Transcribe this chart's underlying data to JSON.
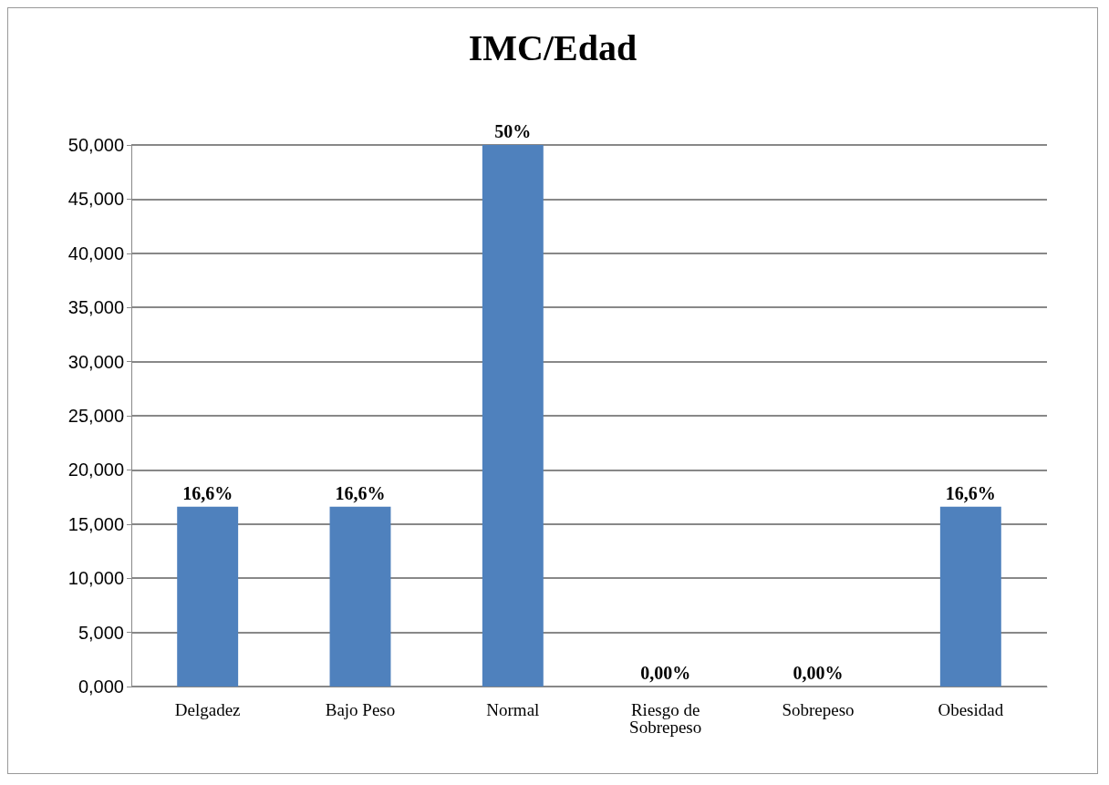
{
  "chart_data": {
    "type": "bar",
    "title": "IMC/Edad",
    "categories": [
      "Delgadez",
      "Bajo Peso",
      "Normal",
      "Riesgo de\nSobrepeso",
      "Sobrepeso",
      "Obesidad"
    ],
    "values": [
      16.6,
      16.6,
      50,
      0,
      0,
      16.6
    ],
    "value_labels": [
      "16,6%",
      "16,6%",
      "50%",
      "0,00%",
      "0,00%",
      "16,6%"
    ],
    "color": "#4f81bd",
    "ylim": [
      0,
      50
    ],
    "yticks": [
      {
        "value": 0,
        "label": "0,000"
      },
      {
        "value": 5,
        "label": "5,000"
      },
      {
        "value": 10,
        "label": "10,000"
      },
      {
        "value": 15,
        "label": "15,000"
      },
      {
        "value": 20,
        "label": "20,000"
      },
      {
        "value": 25,
        "label": "25,000"
      },
      {
        "value": 30,
        "label": "30,000"
      },
      {
        "value": 35,
        "label": "35,000"
      },
      {
        "value": 40,
        "label": "40,000"
      },
      {
        "value": 45,
        "label": "45,000"
      },
      {
        "value": 50,
        "label": "50,000"
      }
    ],
    "grid": "y"
  }
}
